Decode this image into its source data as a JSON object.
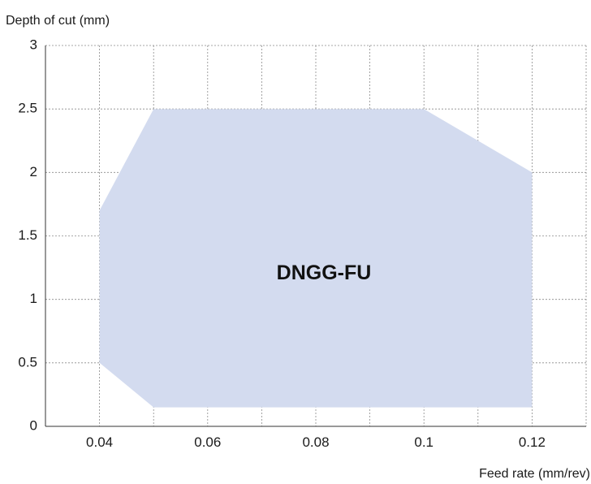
{
  "chart_data": {
    "type": "area",
    "ylabel": "Depth of cut (mm)",
    "xlabel": "Feed rate (mm/rev)",
    "xlim": [
      0.03,
      0.13
    ],
    "ylim": [
      0,
      3
    ],
    "x_ticks": [
      0.04,
      0.06,
      0.08,
      0.1,
      0.12
    ],
    "x_tick_labels": [
      "0.04",
      "0.06",
      "0.08",
      "0.1",
      "0.12"
    ],
    "y_ticks": [
      0,
      0.5,
      1,
      1.5,
      2,
      2.5,
      3
    ],
    "y_tick_labels": [
      "0",
      "0.5",
      "1",
      "1.5",
      "2",
      "2.5",
      "3"
    ],
    "x_gridlines": [
      0.04,
      0.05,
      0.06,
      0.07,
      0.08,
      0.09,
      0.1,
      0.11,
      0.12,
      0.13
    ],
    "grid": true,
    "series": [
      {
        "name": "DNGG-FU",
        "color": "#d3dbef",
        "x": [
          0.04,
          0.05,
          0.1,
          0.12,
          0.12,
          0.05,
          0.04
        ],
        "y": [
          1.7,
          2.5,
          2.5,
          2.0,
          0.15,
          0.15,
          0.5
        ]
      }
    ],
    "annotations": [
      {
        "text": "DNGG-FU",
        "x": 0.0815,
        "y": 1.2
      }
    ]
  }
}
